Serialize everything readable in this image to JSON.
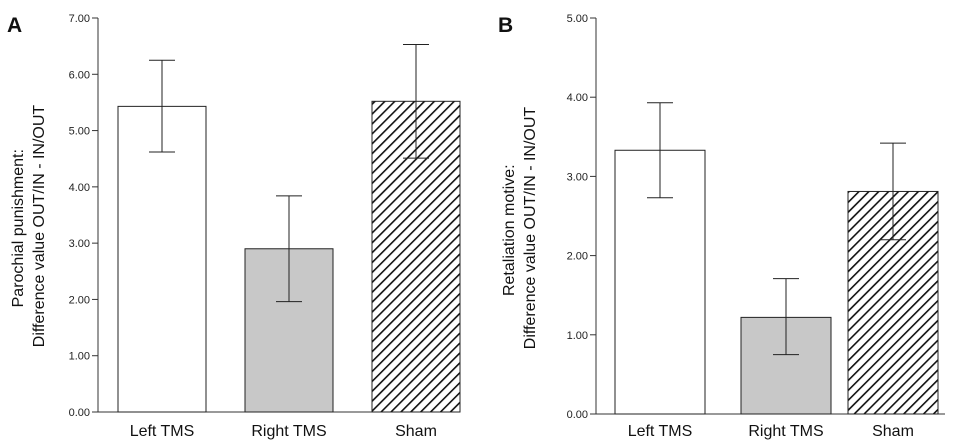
{
  "chart_data": [
    {
      "type": "bar",
      "panel": "A",
      "categories": [
        "Left TMS",
        "Right TMS",
        "Sham"
      ],
      "values": [
        5.43,
        2.9,
        5.52
      ],
      "error_low": [
        4.62,
        1.96,
        4.51
      ],
      "error_high": [
        6.25,
        3.84,
        6.53
      ],
      "fills": [
        "white",
        "#c8c8c8",
        "hatch"
      ],
      "ylabel": [
        "Parochial punishment:",
        "Difference value OUT/IN - IN/OUT"
      ],
      "ylim": [
        0,
        7
      ],
      "yticks": [
        "0.00",
        "1.00",
        "2.00",
        "3.00",
        "4.00",
        "5.00",
        "6.00",
        "7.00"
      ],
      "grid": false,
      "legend": "none"
    },
    {
      "type": "bar",
      "panel": "B",
      "categories": [
        "Left TMS",
        "Right TMS",
        "Sham"
      ],
      "values": [
        3.33,
        1.22,
        2.81
      ],
      "error_low": [
        2.73,
        0.75,
        2.2
      ],
      "error_high": [
        3.93,
        1.71,
        3.42
      ],
      "fills": [
        "white",
        "#c8c8c8",
        "hatch"
      ],
      "ylabel": [
        "Retaliation motive:",
        "Difference value OUT/IN - IN/OUT"
      ],
      "ylim": [
        0,
        5
      ],
      "yticks": [
        "0.00",
        "1.00",
        "2.00",
        "3.00",
        "4.00",
        "5.00"
      ],
      "grid": false,
      "legend": "none"
    }
  ]
}
